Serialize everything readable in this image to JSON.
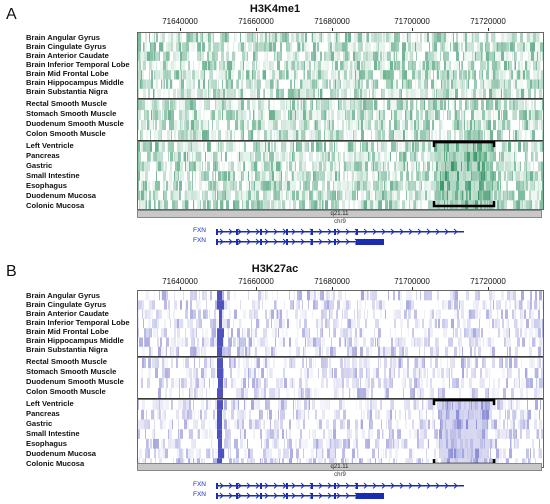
{
  "colors": {
    "h3k4me1": "#1f8a56",
    "h3k27ac": "#3d3fb8",
    "gene": "#1a2db0"
  },
  "panels": [
    {
      "letter": "A",
      "title": "H3K4me1",
      "color_key": "h3k4me1",
      "ticks": [
        "71640000",
        "71660000",
        "71680000",
        "71700000",
        "71720000"
      ],
      "band_label": "q21.11",
      "chrom_label": "chr9",
      "genes": [
        "FXN",
        "FXN"
      ],
      "groups": [
        [
          "Brain Angular Gyrus",
          "Brain Cingulate Gyrus",
          "Brain Anterior Caudate",
          "Brain Inferior Temporal Lobe",
          "Brain Mid Frontal Lobe",
          "Brain Hippocampus Middle",
          "Brain Substantia Nigra"
        ],
        [
          "Rectal Smooth Muscle",
          "Stomach Smooth Muscle",
          "Duodenum Smooth Muscle",
          "Colon Smooth Muscle"
        ],
        [
          "Left Ventricle",
          "Pancreas",
          "Gastric",
          "Small Intestine",
          "Esophagus",
          "Duodenum Mucosa",
          "Colonic Mucosa"
        ]
      ]
    },
    {
      "letter": "B",
      "title": "H3K27ac",
      "color_key": "h3k27ac",
      "ticks": [
        "71640000",
        "71660000",
        "71680000",
        "71700000",
        "71720000"
      ],
      "band_label": "q21.11",
      "chrom_label": "chr9",
      "genes": [
        "FXN",
        "FXN"
      ],
      "groups": [
        [
          "Brain Angular Gyrus",
          "Brain Cingulate Gyrus",
          "Brain Anterior Caudate",
          "Brain Inferior Temporal Lobe",
          "Brain Mid Frontal Lobe",
          "Brain Hippocampus Middle",
          "Brain Substantia Nigra"
        ],
        [
          "Rectal Smooth Muscle",
          "Stomach Smooth Muscle",
          "Duodenum Smooth Muscle",
          "Colon Smooth Muscle"
        ],
        [
          "Left Ventricle",
          "Pancreas",
          "Gastric",
          "Small Intestine",
          "Esophagus",
          "Duodenum Mucosa",
          "Colonic Mucosa"
        ]
      ]
    }
  ]
}
